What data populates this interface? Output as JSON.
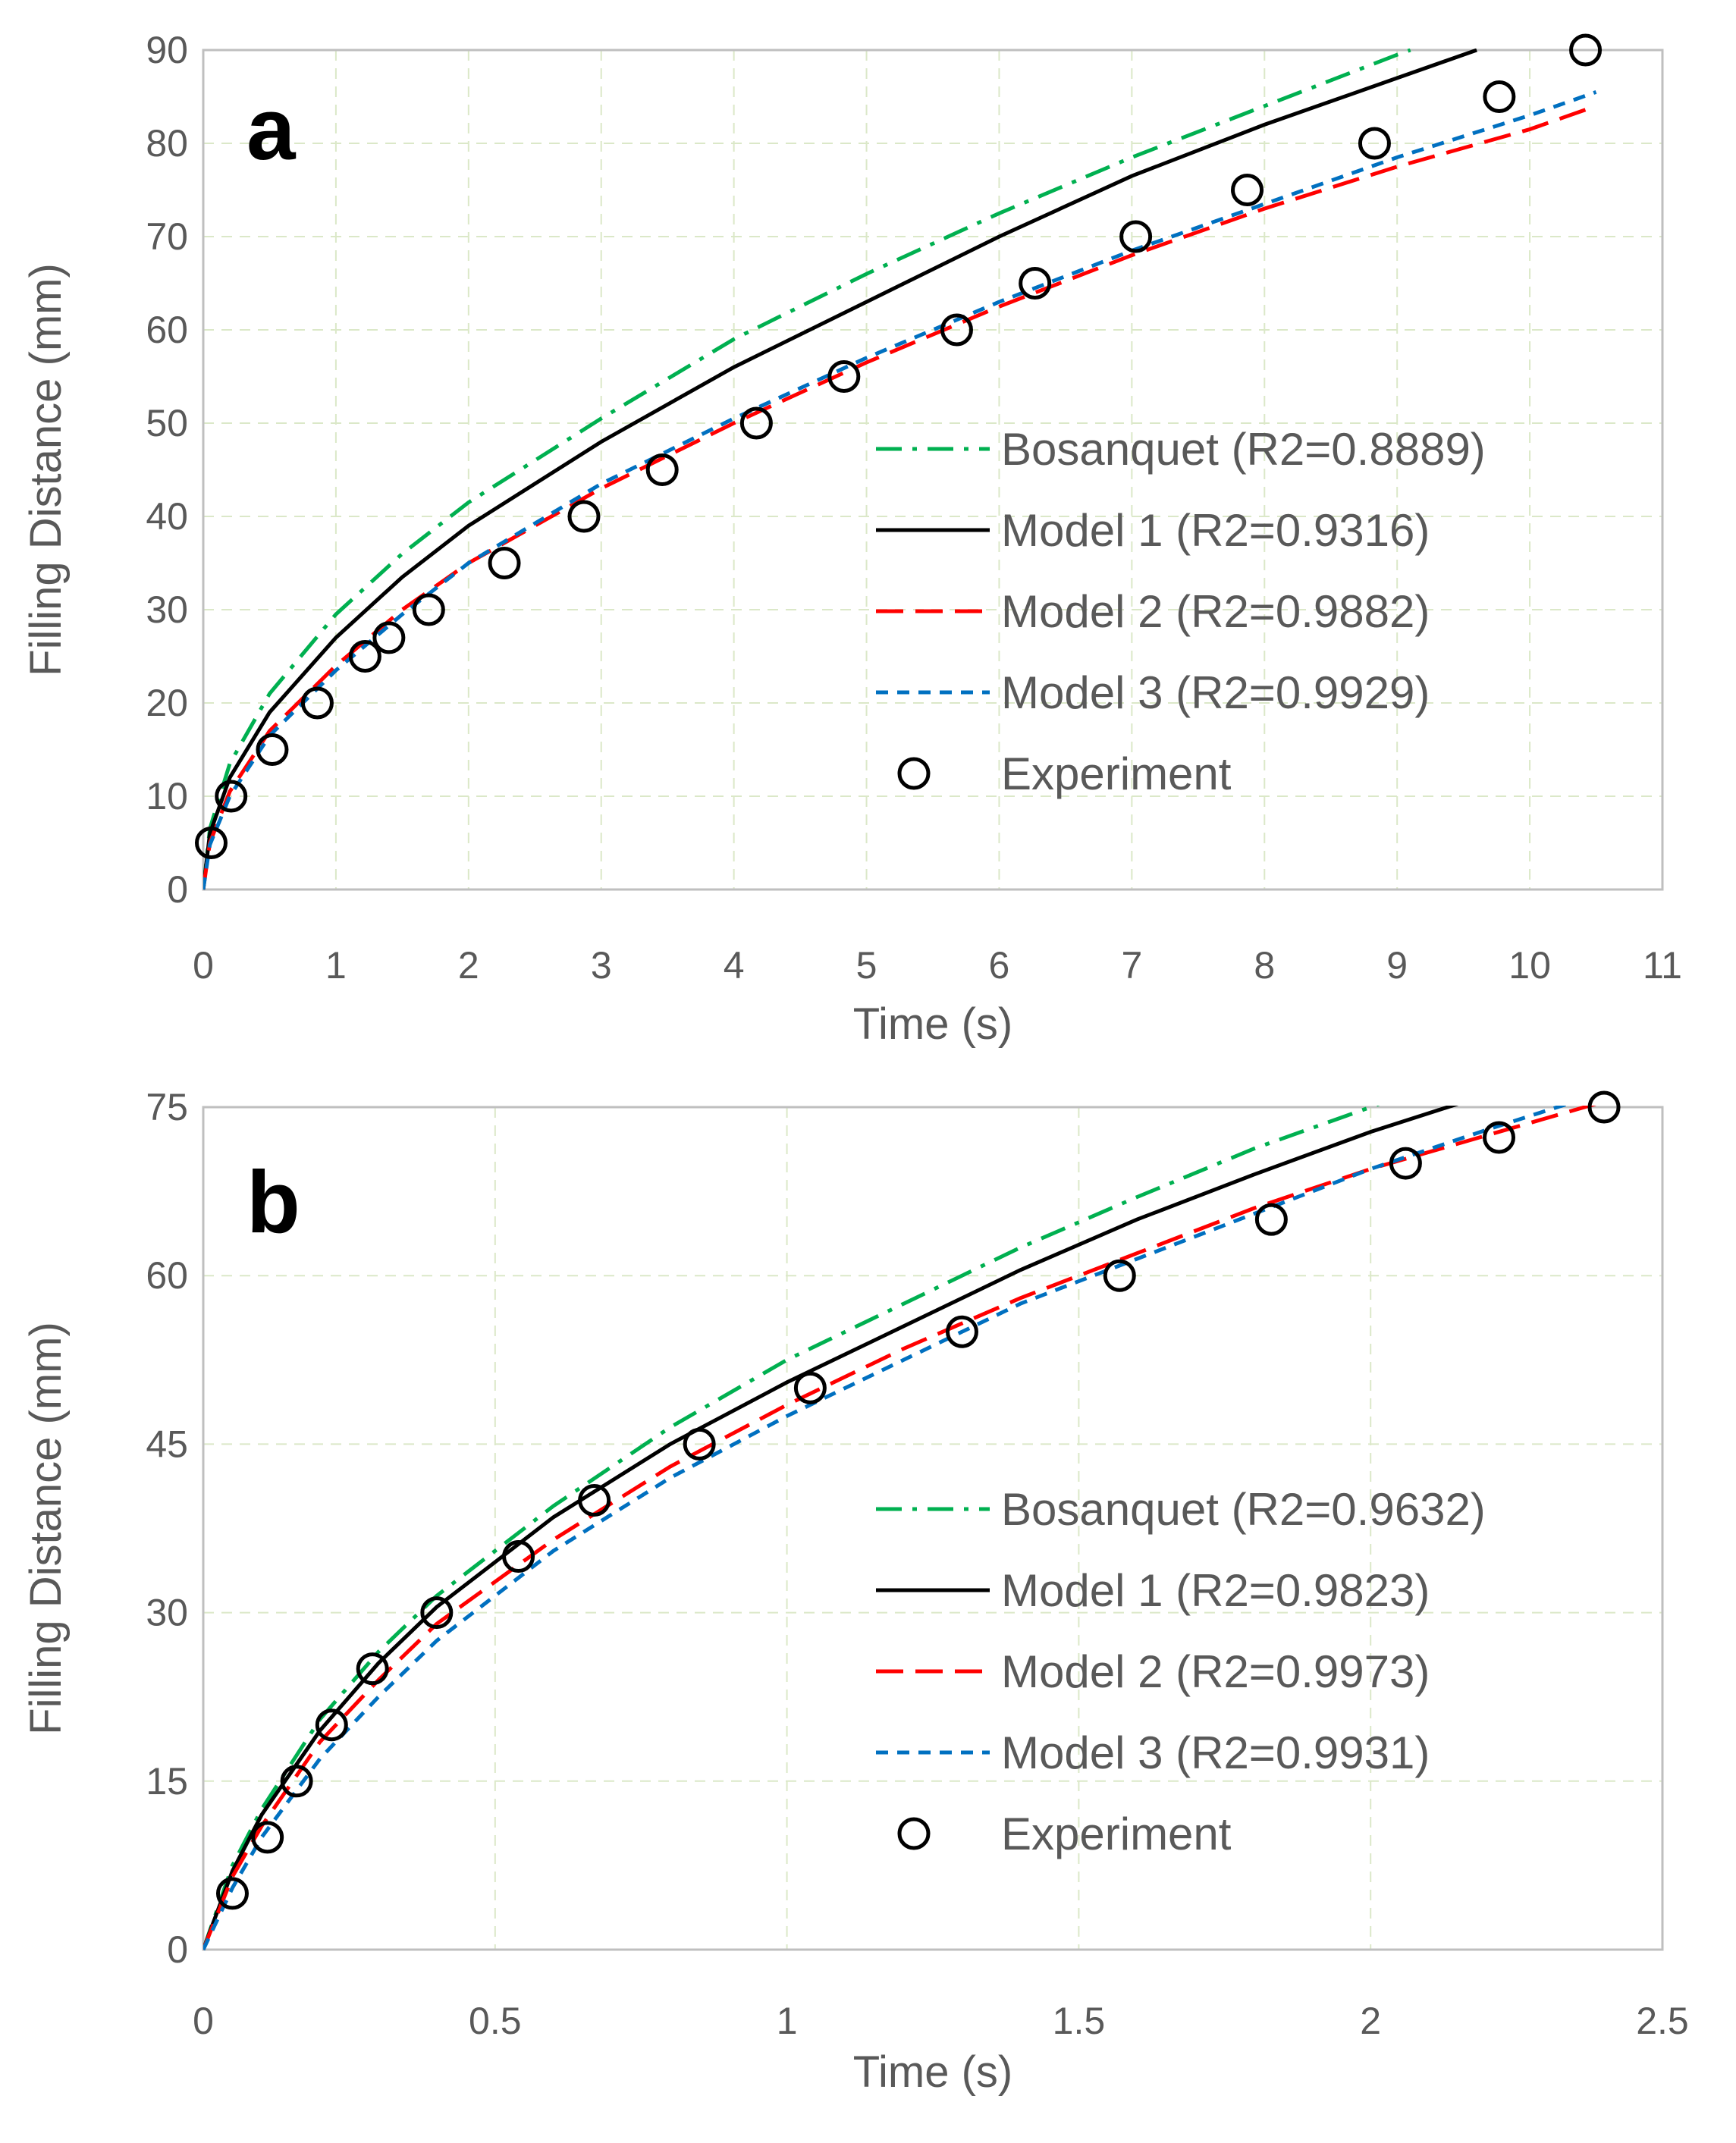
{
  "chart_data": [
    {
      "type": "line",
      "panel_label": "a",
      "xlabel": "Time (s)",
      "ylabel": "Filling Distance (mm)",
      "xlim": [
        0,
        11
      ],
      "ylim": [
        0,
        90
      ],
      "xticks": [
        0,
        1,
        2,
        3,
        4,
        5,
        6,
        7,
        8,
        9,
        10,
        11
      ],
      "yticks": [
        0,
        10,
        20,
        30,
        40,
        50,
        60,
        70,
        80,
        90
      ],
      "grid": true,
      "legend_position": "right",
      "series": [
        {
          "name": "Bosanquet (R2=0.8889)",
          "style": "dash-dot",
          "color": "#00b050",
          "x": [
            0,
            0.05,
            0.2,
            0.5,
            1,
            1.5,
            2,
            3,
            4,
            5,
            6,
            7,
            8,
            9,
            9.1
          ],
          "y": [
            0,
            6.5,
            13.5,
            21,
            29.5,
            36,
            41.5,
            50.5,
            59,
            66,
            72.5,
            78.5,
            84,
            89.5,
            90
          ]
        },
        {
          "name": "Model 1 (R2=0.9316)",
          "style": "solid",
          "color": "#000000",
          "x": [
            0,
            0.05,
            0.2,
            0.5,
            1,
            1.5,
            2,
            3,
            4,
            5,
            6,
            7,
            8,
            9,
            9.6
          ],
          "y": [
            0,
            6,
            12,
            19,
            27,
            33.5,
            39,
            48,
            56,
            63,
            70,
            76.5,
            82,
            87,
            90
          ]
        },
        {
          "name": "Model 2 (R2=0.9882)",
          "style": "dashed",
          "color": "#ff0000",
          "x": [
            0,
            0.05,
            0.2,
            0.5,
            1,
            1.5,
            2,
            3,
            4,
            5,
            6,
            7,
            8,
            9,
            10,
            10.5
          ],
          "y": [
            0,
            5,
            10.5,
            17,
            24,
            30,
            35,
            43,
            50,
            56.5,
            62.5,
            68,
            73,
            77.5,
            81.5,
            84
          ]
        },
        {
          "name": "Model 3 (R2=0.9929)",
          "style": "dotted",
          "color": "#0070c0",
          "x": [
            0,
            0.05,
            0.2,
            0.5,
            1,
            1.5,
            2,
            3,
            4,
            5,
            6,
            7,
            8,
            9,
            10,
            10.5
          ],
          "y": [
            0,
            4.8,
            10,
            16.5,
            23.5,
            29.5,
            35,
            43.5,
            50.5,
            57,
            63,
            68.5,
            73.5,
            78.5,
            83,
            85.5
          ]
        },
        {
          "name": "Experiment",
          "style": "marker",
          "color": "#000000",
          "x": [
            0.06,
            0.21,
            0.52,
            0.86,
            1.22,
            1.4,
            1.7,
            2.27,
            2.87,
            3.46,
            4.17,
            4.83,
            5.68,
            6.27,
            7.03,
            7.87,
            8.83,
            9.77,
            10.42
          ],
          "y": [
            5,
            10,
            15,
            20,
            25,
            27,
            30,
            35,
            40,
            45,
            50,
            55,
            60,
            65,
            70,
            75,
            80,
            85,
            90
          ]
        }
      ]
    },
    {
      "type": "line",
      "panel_label": "b",
      "xlabel": "Time (s)",
      "ylabel": "Filling Distance (mm)",
      "xlim": [
        0,
        2.5
      ],
      "ylim": [
        0,
        75
      ],
      "xticks": [
        0,
        0.5,
        1,
        1.5,
        2,
        2.5
      ],
      "yticks": [
        0,
        15,
        30,
        45,
        60,
        75
      ],
      "grid": true,
      "legend_position": "right",
      "series": [
        {
          "name": "Bosanquet (R2=0.9632)",
          "style": "dash-dot",
          "color": "#00b050",
          "x": [
            0,
            0.05,
            0.1,
            0.2,
            0.3,
            0.4,
            0.6,
            0.8,
            1,
            1.2,
            1.4,
            1.6,
            1.8,
            2,
            2.05
          ],
          "y": [
            0,
            7.5,
            12.5,
            20.5,
            26.5,
            31.5,
            39.5,
            46.5,
            52.5,
            57.5,
            62.5,
            67,
            71.3,
            75,
            76
          ]
        },
        {
          "name": "Model 1 (R2=0.9823)",
          "style": "solid",
          "color": "#000000",
          "x": [
            0,
            0.05,
            0.1,
            0.2,
            0.3,
            0.4,
            0.6,
            0.8,
            1,
            1.2,
            1.4,
            1.6,
            1.8,
            2,
            2.15
          ],
          "y": [
            0,
            7,
            12,
            19.5,
            25.5,
            30.5,
            38.5,
            45,
            50.5,
            55.5,
            60.5,
            65,
            69,
            72.8,
            75.3
          ]
        },
        {
          "name": "Model 2 (R2=0.9973)",
          "style": "dashed",
          "color": "#ff0000",
          "x": [
            0,
            0.05,
            0.1,
            0.2,
            0.3,
            0.4,
            0.6,
            0.8,
            1,
            1.2,
            1.4,
            1.6,
            1.8,
            2,
            2.2,
            2.4
          ],
          "y": [
            0,
            6.5,
            11,
            18.5,
            24,
            29,
            36.5,
            43,
            48.5,
            53.5,
            58,
            62,
            66,
            69.5,
            72.5,
            75.5
          ]
        },
        {
          "name": "Model 3 (R2=0.9931)",
          "style": "dotted",
          "color": "#0070c0",
          "x": [
            0,
            0.05,
            0.1,
            0.2,
            0.3,
            0.4,
            0.6,
            0.8,
            1,
            1.2,
            1.4,
            1.6,
            1.8,
            2,
            2.2,
            2.35
          ],
          "y": [
            0,
            5.5,
            10,
            17,
            22.5,
            27.5,
            35.5,
            42,
            47.5,
            52.5,
            57.5,
            61.5,
            65.5,
            69.5,
            73,
            75.5
          ]
        },
        {
          "name": "Experiment",
          "style": "marker",
          "color": "#000000",
          "x": [
            0.05,
            0.11,
            0.16,
            0.22,
            0.29,
            0.4,
            0.54,
            0.67,
            0.85,
            1.04,
            1.3,
            1.57,
            1.83,
            2.06,
            2.22,
            2.4
          ],
          "y": [
            5,
            10,
            15,
            20,
            25,
            30,
            35,
            40,
            45,
            50,
            55,
            60,
            65,
            70,
            72.3,
            75
          ]
        }
      ]
    }
  ]
}
